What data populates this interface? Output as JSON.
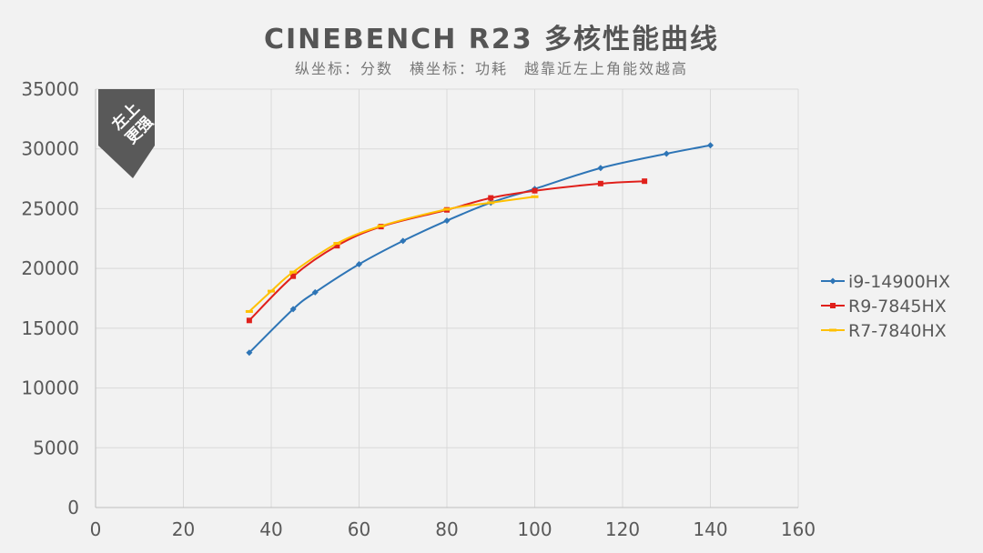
{
  "chart_data": {
    "type": "line",
    "title": "CINEBENCH R23 多核性能曲线",
    "subtitle": "纵坐标：分数　横坐标：功耗　越靠近左上角能效越高",
    "badge": [
      "左上",
      "更强"
    ],
    "xlim": [
      0,
      160
    ],
    "ylim": [
      0,
      35000
    ],
    "xticks": [
      0,
      20,
      40,
      60,
      80,
      100,
      120,
      140,
      160
    ],
    "yticks": [
      0,
      5000,
      10000,
      15000,
      20000,
      25000,
      30000,
      35000
    ],
    "grid": true,
    "legend_position": "right",
    "series": [
      {
        "name": "i9-14900HX",
        "color": "#2e75b6",
        "marker": "diamond",
        "x": [
          35,
          45,
          50,
          60,
          70,
          80,
          90,
          100,
          115,
          130,
          140
        ],
        "y": [
          12950,
          16600,
          18000,
          20350,
          22300,
          24000,
          25500,
          26650,
          28400,
          29600,
          30300
        ]
      },
      {
        "name": "R9-7845HX",
        "color": "#e0201b",
        "marker": "square",
        "x": [
          35,
          45,
          55,
          65,
          80,
          90,
          100,
          115,
          125
        ],
        "y": [
          15650,
          19350,
          21900,
          23500,
          24900,
          25900,
          26500,
          27100,
          27300
        ]
      },
      {
        "name": "R7-7840HX",
        "color": "#ffc000",
        "marker": "dash",
        "x": [
          35,
          40,
          45,
          55,
          65,
          80,
          90,
          100
        ],
        "y": [
          16400,
          18100,
          19700,
          22100,
          23550,
          24950,
          25500,
          26000
        ]
      }
    ]
  }
}
